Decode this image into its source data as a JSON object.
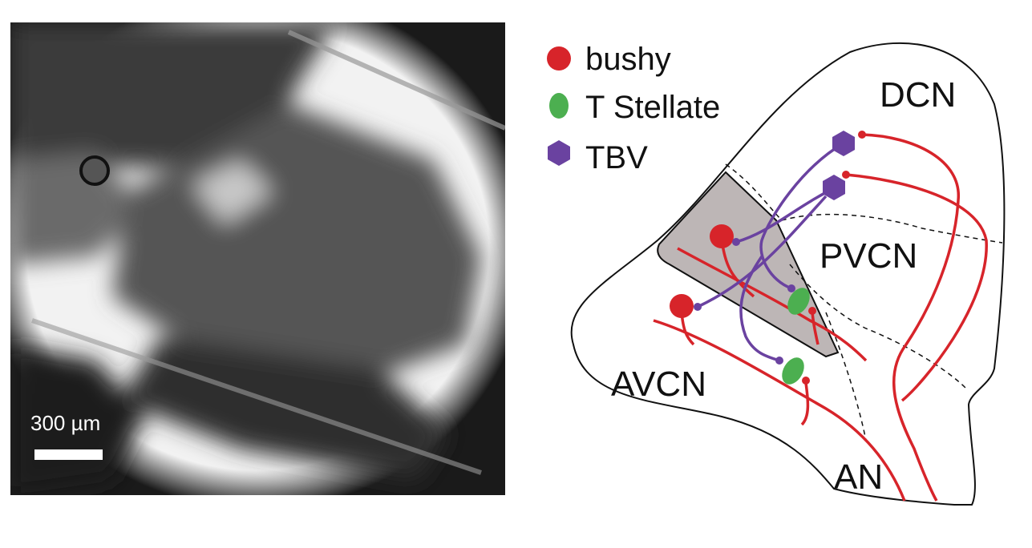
{
  "micrograph": {
    "scale_bar": "300 µm"
  },
  "legend": [
    {
      "label": "bushy"
    },
    {
      "label": "T Stellate"
    },
    {
      "label": "TBV"
    }
  ],
  "regions": [
    "DCN",
    "PVCN",
    "AVCN",
    "AN"
  ]
}
